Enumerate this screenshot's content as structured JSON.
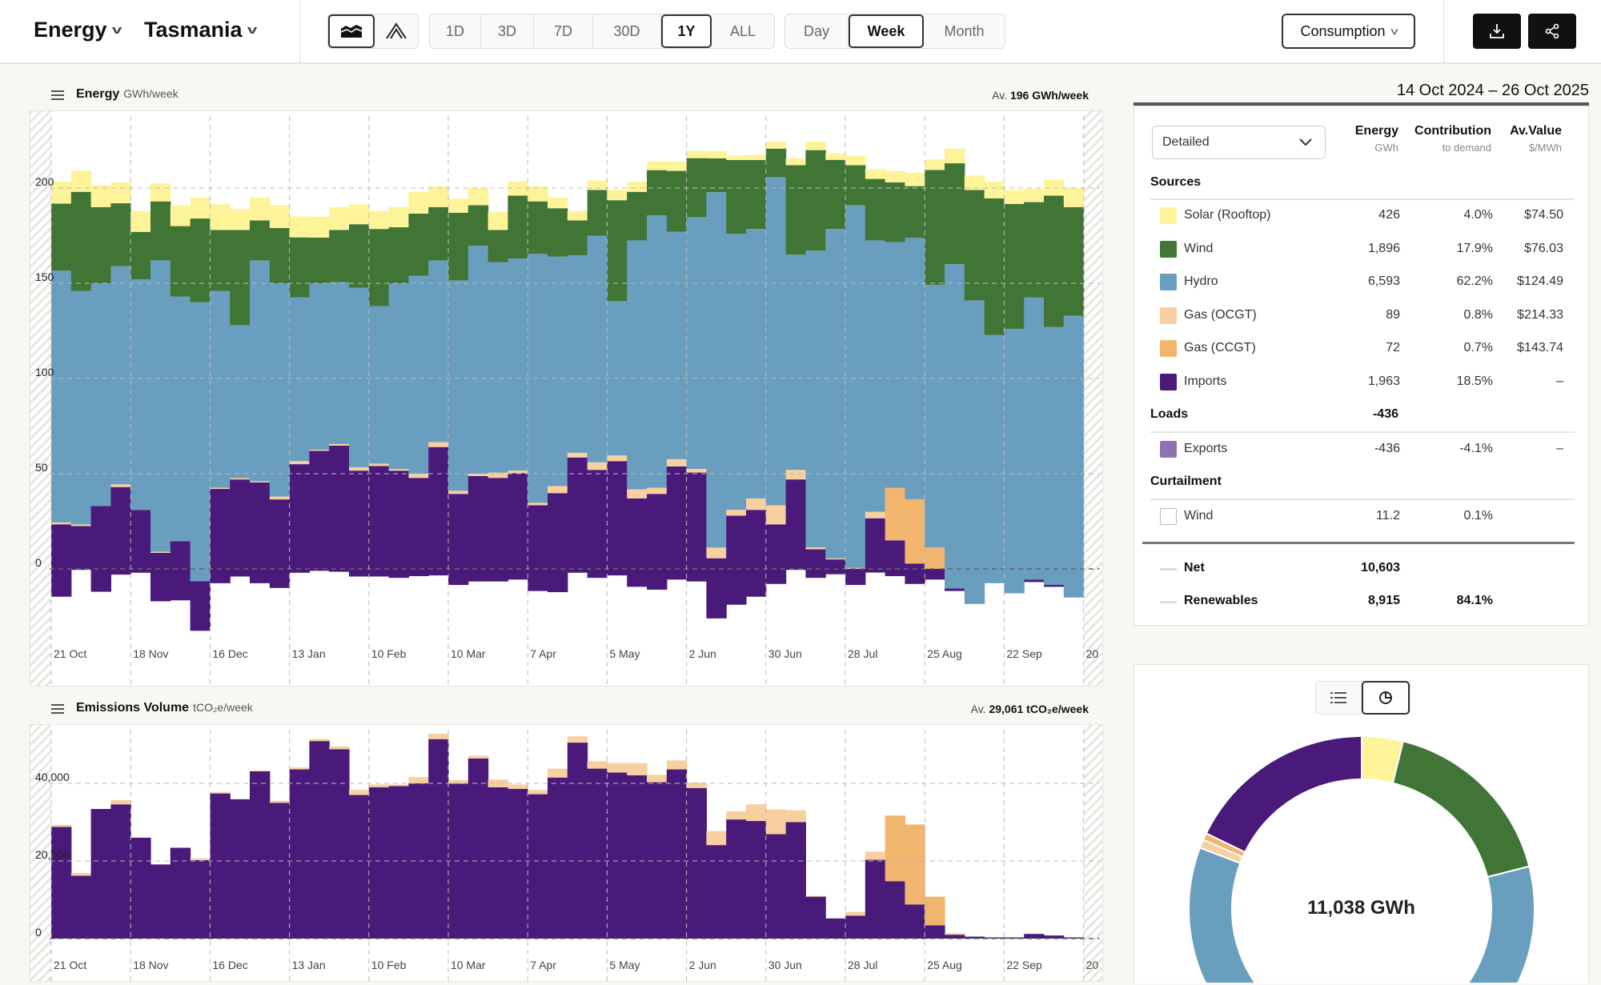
{
  "header": {
    "metric": "Energy",
    "region": "Tasmania",
    "chart_types": [
      "area-chart-icon",
      "line-chart-icon"
    ],
    "ranges": [
      "1D",
      "3D",
      "7D",
      "30D",
      "1Y",
      "ALL"
    ],
    "range_selected": "1Y",
    "intervals": [
      "Day",
      "Week",
      "Month"
    ],
    "interval_selected": "Week",
    "view": "Consumption",
    "download_icon": "download-icon",
    "share_icon": "share-icon"
  },
  "energy_chart": {
    "title": "Energy",
    "unit": "GWh/week",
    "avg_label": "Av.",
    "avg_value": "196 GWh/week"
  },
  "emissions_chart": {
    "title": "Emissions Volume",
    "unit": "tCO₂e/week",
    "avg_label": "Av.",
    "avg_value": "29,061 tCO₂e/week"
  },
  "summary": {
    "date_range": "14 Oct 2024 – 26 Oct 2025",
    "view_select": "Detailed",
    "columns": [
      {
        "label": "Energy",
        "sub": "GWh"
      },
      {
        "label": "Contribution",
        "sub": "to demand"
      },
      {
        "label": "Av.Value",
        "sub": "$/MWh"
      }
    ],
    "sources_label": "Sources",
    "sources": [
      {
        "name": "Solar (Rooftop)",
        "energy": "426",
        "contribution": "4.0%",
        "av_value": "$74.50",
        "color": "#fdf49a"
      },
      {
        "name": "Wind",
        "energy": "1,896",
        "contribution": "17.9%",
        "av_value": "$76.03",
        "color": "#417535"
      },
      {
        "name": "Hydro",
        "energy": "6,593",
        "contribution": "62.2%",
        "av_value": "$124.49",
        "color": "#6a9ebf"
      },
      {
        "name": "Gas (OCGT)",
        "energy": "89",
        "contribution": "0.8%",
        "av_value": "$214.33",
        "color": "#f8cf9f"
      },
      {
        "name": "Gas (CCGT)",
        "energy": "72",
        "contribution": "0.7%",
        "av_value": "$143.74",
        "color": "#f2b56e"
      },
      {
        "name": "Imports",
        "energy": "1,963",
        "contribution": "18.5%",
        "av_value": "–",
        "color": "#4a1a7b"
      }
    ],
    "loads_label": "Loads",
    "loads_total": "-436",
    "loads": [
      {
        "name": "Exports",
        "energy": "-436",
        "contribution": "-4.1%",
        "av_value": "–",
        "color": "#8d72b0"
      }
    ],
    "curtailment_label": "Curtailment",
    "curtailment": [
      {
        "name": "Wind",
        "energy": "11.2",
        "contribution": "0.1%",
        "color": "#ffffff"
      }
    ],
    "net": {
      "name": "Net",
      "energy": "10,603"
    },
    "renewables": {
      "name": "Renewables",
      "energy": "8,915",
      "contribution": "84.1%"
    }
  },
  "donut_toggle": [
    "list-icon",
    "donut-chart-icon"
  ],
  "chart_data": [
    {
      "type": "area",
      "title": "Energy",
      "ylabel": "GWh/week",
      "ylim": [
        -40,
        240
      ],
      "yticks": [
        0,
        50,
        100,
        150,
        200
      ],
      "grid": true,
      "x_tick_labels": [
        "21 Oct",
        "18 Nov",
        "16 Dec",
        "13 Jan",
        "10 Feb",
        "10 Mar",
        "7 Apr",
        "5 May",
        "2 Jun",
        "30 Jun",
        "28 Jul",
        "25 Aug",
        "22 Sep",
        "20"
      ],
      "x": [
        "2024-10-21",
        "2024-10-28",
        "2024-11-04",
        "2024-11-11",
        "2024-11-18",
        "2024-11-25",
        "2024-12-02",
        "2024-12-09",
        "2024-12-16",
        "2024-12-23",
        "2024-12-30",
        "2025-01-06",
        "2025-01-13",
        "2025-01-20",
        "2025-01-27",
        "2025-02-03",
        "2025-02-10",
        "2025-02-17",
        "2025-02-24",
        "2025-03-03",
        "2025-03-10",
        "2025-03-17",
        "2025-03-24",
        "2025-03-31",
        "2025-04-07",
        "2025-04-14",
        "2025-04-21",
        "2025-04-28",
        "2025-05-05",
        "2025-05-12",
        "2025-05-19",
        "2025-05-26",
        "2025-06-02",
        "2025-06-09",
        "2025-06-16",
        "2025-06-23",
        "2025-06-30",
        "2025-07-07",
        "2025-07-14",
        "2025-07-21",
        "2025-07-28",
        "2025-08-04",
        "2025-08-11",
        "2025-08-18",
        "2025-08-25",
        "2025-09-01",
        "2025-09-08",
        "2025-09-15",
        "2025-09-22",
        "2025-09-29",
        "2025-10-06",
        "2025-10-13"
      ],
      "series": [
        {
          "name": "Imports",
          "color": "#4a1a7b",
          "values": [
            23.4,
            22.5,
            33,
            43,
            31,
            8.4,
            14.6,
            0,
            42,
            47,
            45.4,
            36.5,
            55,
            62,
            64.7,
            51.6,
            54,
            51.6,
            47.8,
            64,
            39.4,
            48.8,
            47.8,
            50.3,
            33.4,
            39.8,
            58.5,
            52,
            56.6,
            37,
            39.4,
            53.8,
            50.6,
            5.6,
            28,
            31,
            23.4,
            47,
            10.3,
            5,
            0,
            26.6,
            15,
            2.8,
            0,
            0,
            0,
            0,
            0,
            0,
            0,
            0
          ]
        },
        {
          "name": "Gas (OCGT)",
          "color": "#f8cf9f",
          "values": [
            1,
            0.9,
            0,
            1.4,
            0,
            0.6,
            0,
            0,
            0.6,
            0.6,
            0.6,
            1.5,
            1.6,
            0.6,
            0.9,
            1.8,
            1.3,
            0.9,
            2.2,
            2.6,
            1.6,
            1.2,
            2.8,
            1.3,
            1.3,
            3.7,
            2.5,
            4,
            3,
            4.8,
            3.2,
            3.8,
            1.9,
            5.6,
            3,
            6,
            10,
            5,
            1,
            0.5,
            0.5,
            3.4,
            0,
            0,
            0,
            0,
            0,
            0,
            0,
            0,
            0,
            0
          ]
        },
        {
          "name": "Gas (CCGT)",
          "color": "#f2b56e",
          "values": [
            0,
            0,
            0,
            0,
            0,
            0,
            0,
            0,
            0,
            0,
            0,
            0,
            0,
            0,
            0,
            0,
            0,
            0,
            0,
            0,
            0,
            0,
            0,
            0,
            0,
            0,
            0,
            0,
            0,
            0,
            0,
            0,
            0,
            0,
            0,
            0,
            0,
            0,
            0,
            0,
            0,
            0,
            27.6,
            33.8,
            11.3,
            0,
            0,
            0,
            0,
            0,
            0,
            0
          ]
        },
        {
          "name": "Hydro",
          "color": "#6a9ebf",
          "values": [
            132.2,
            122.6,
            117,
            114.6,
            121,
            153,
            128.4,
            140,
            103.4,
            80.4,
            116,
            112,
            86,
            87.4,
            85,
            94.2,
            82.7,
            97.5,
            104,
            95.4,
            110.5,
            119.7,
            110.4,
            111.4,
            130.7,
            120.5,
            103.6,
            119,
            81,
            130.7,
            143,
            119.4,
            132.2,
            186.6,
            145,
            141.5,
            172.3,
            113,
            155.8,
            173,
            190.5,
            142.5,
            129,
            137.2,
            137.8,
            160,
            141,
            122.8,
            126,
            142.5,
            127,
            133
          ]
        },
        {
          "name": "Wind",
          "color": "#417535",
          "values": [
            35.2,
            52,
            40,
            33,
            25,
            31,
            37,
            44,
            32,
            50,
            21,
            29,
            31.5,
            24,
            27.4,
            33.4,
            40.5,
            29.4,
            32.6,
            28,
            35.5,
            21.3,
            17,
            33,
            27.6,
            25.4,
            18.4,
            24,
            53,
            25.5,
            23.8,
            32,
            31,
            17.8,
            38.7,
            36.2,
            15,
            47,
            52.8,
            36.3,
            21,
            32.3,
            31.4,
            27.2,
            60.4,
            53,
            58,
            71.8,
            65.6,
            50.1,
            69,
            57
          ]
        },
        {
          "name": "Solar (Rooftop)",
          "color": "#fdf49a",
          "values": [
            11.6,
            11,
            11.6,
            11,
            11,
            9.5,
            11,
            11,
            13.6,
            11,
            12,
            12,
            11,
            11,
            12,
            10.6,
            9.5,
            10.6,
            11.4,
            11,
            7.4,
            9,
            9.5,
            7.4,
            8,
            5.6,
            5,
            5,
            5.5,
            5.4,
            4.6,
            5,
            3.8,
            3.8,
            2.3,
            2.8,
            3.7,
            3.6,
            4.6,
            3.4,
            5,
            5.2,
            6,
            7,
            5.6,
            7.7,
            7.6,
            8.8,
            7.4,
            7.1,
            8.4,
            10
          ]
        },
        {
          "name": "Hydro (pumping)",
          "color": "#6a9ebf",
          "values": [
            0,
            0,
            0,
            0,
            0,
            0,
            0,
            -6.5,
            0,
            0,
            0,
            0,
            0,
            0,
            0,
            0,
            0,
            0,
            0,
            0,
            0,
            0,
            0,
            0,
            0,
            0,
            0,
            0,
            0,
            0,
            0,
            0,
            0,
            0,
            0,
            0,
            0,
            0,
            0,
            0,
            0,
            0,
            0,
            0,
            0,
            -10.3,
            -18.4,
            -7.5,
            -12.8,
            -5.6,
            -8.4,
            -15
          ]
        },
        {
          "name": "Exports",
          "color": "#4a1a7b",
          "values": [
            -14.6,
            -0.5,
            -12,
            -3,
            -2,
            -17,
            -16.5,
            -26,
            -7.5,
            -4,
            -7.5,
            -10,
            -2,
            -1,
            -1.5,
            -4,
            -4,
            -4.7,
            -3.8,
            -3.4,
            -8.4,
            -6.6,
            -6.6,
            -5.6,
            -11.6,
            -12.2,
            -2,
            -4.7,
            -3.4,
            -9.4,
            -10.9,
            -5.6,
            -6.6,
            -26,
            -18.8,
            -14.6,
            -7.9,
            -0.5,
            -4.7,
            -2.8,
            -8.4,
            -1.9,
            -3.8,
            -7.9,
            -5.6,
            -1.3,
            0,
            0,
            0,
            -1.3,
            -1,
            0
          ]
        }
      ]
    },
    {
      "type": "area",
      "title": "Emissions Volume",
      "ylabel": "tCO₂e/week",
      "ylim": [
        -5000,
        55000
      ],
      "yticks": [
        0,
        20000,
        40000
      ],
      "ytick_labels": [
        "0",
        "20,000",
        "40,000"
      ],
      "grid": true,
      "x_tick_labels": [
        "21 Oct",
        "18 Nov",
        "16 Dec",
        "13 Jan",
        "10 Feb",
        "10 Mar",
        "7 Apr",
        "5 May",
        "2 Jun",
        "30 Jun",
        "28 Jul",
        "25 Aug",
        "22 Sep",
        "20"
      ],
      "series": [
        {
          "name": "Imports",
          "color": "#4a1a7b",
          "values": [
            28800,
            16200,
            33400,
            34600,
            26000,
            19100,
            23400,
            20200,
            37400,
            35900,
            43100,
            35000,
            43600,
            50900,
            48800,
            37000,
            39000,
            39300,
            40000,
            51400,
            39900,
            46400,
            39000,
            38600,
            37200,
            41500,
            50500,
            43800,
            42800,
            42100,
            40300,
            43600,
            38800,
            24100,
            30700,
            30300,
            26900,
            30000,
            10800,
            5200,
            5900,
            20300,
            14800,
            8800,
            3400,
            1000,
            500,
            300,
            300,
            1200,
            800,
            300
          ]
        },
        {
          "name": "Gas (OCGT)",
          "color": "#f8cf9f",
          "values": [
            500,
            700,
            0,
            1100,
            0,
            0,
            0,
            500,
            400,
            0,
            200,
            500,
            500,
            500,
            700,
            1300,
            700,
            400,
            1600,
            1400,
            900,
            700,
            2000,
            1100,
            1100,
            2300,
            1600,
            1900,
            2400,
            3100,
            1900,
            2300,
            1400,
            3600,
            2100,
            4300,
            6400,
            3100,
            200,
            0,
            1000,
            2100,
            0,
            0,
            0,
            400,
            0,
            0,
            0,
            0,
            0,
            0
          ]
        },
        {
          "name": "Gas (CCGT)",
          "color": "#f2b56e",
          "values": [
            0,
            0,
            0,
            0,
            0,
            0,
            0,
            0,
            0,
            0,
            0,
            0,
            0,
            0,
            0,
            0,
            0,
            0,
            0,
            0,
            0,
            0,
            0,
            0,
            0,
            0,
            0,
            0,
            0,
            0,
            0,
            0,
            0,
            0,
            0,
            0,
            0,
            0,
            0,
            0,
            0,
            0,
            16900,
            20600,
            7400,
            0,
            0,
            0,
            0,
            0,
            0,
            0
          ]
        }
      ]
    },
    {
      "type": "pie",
      "center_label": "11,038 GWh",
      "categories": [
        "Solar (Rooftop)",
        "Wind",
        "Hydro",
        "Gas (OCGT)",
        "Gas (CCGT)",
        "Imports"
      ],
      "values": [
        426,
        1896,
        6593,
        89,
        72,
        1963
      ],
      "colors": [
        "#fdf49a",
        "#417535",
        "#6a9ebf",
        "#f8cf9f",
        "#f2b56e",
        "#4a1a7b"
      ]
    }
  ]
}
